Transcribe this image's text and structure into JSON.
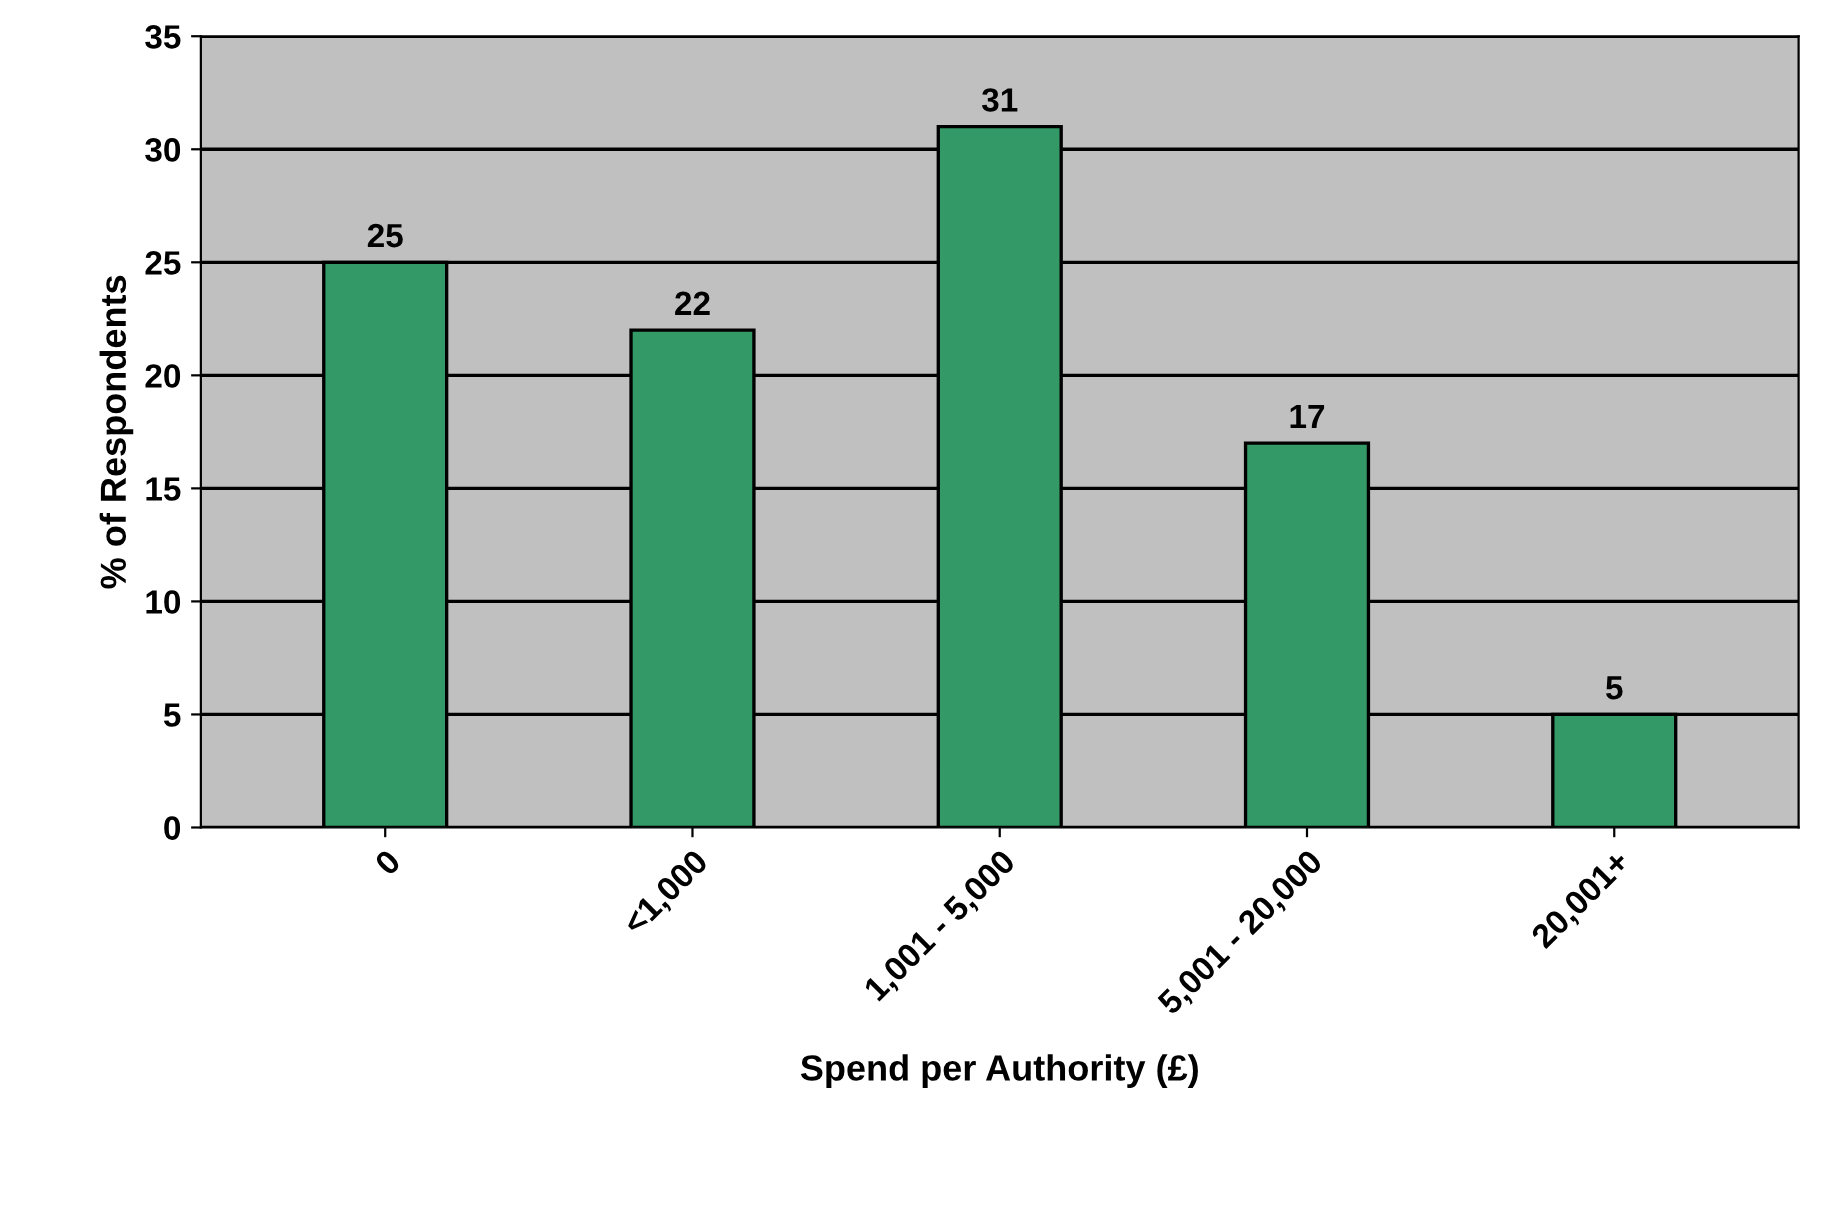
{
  "chart_data": {
    "type": "bar",
    "xlabel": "Spend per Authority (£)",
    "ylabel": "% of Respondents",
    "categories": [
      "0",
      "<1,000",
      "1,001 - 5,000",
      "5,001 - 20,000",
      "20,001+"
    ],
    "values": [
      25,
      22,
      31,
      17,
      5
    ],
    "color": "#339966",
    "ylim": [
      0,
      35
    ],
    "yticks": [
      0,
      5,
      10,
      15,
      20,
      25,
      30,
      35
    ],
    "grid": "y",
    "data_labels": true
  }
}
